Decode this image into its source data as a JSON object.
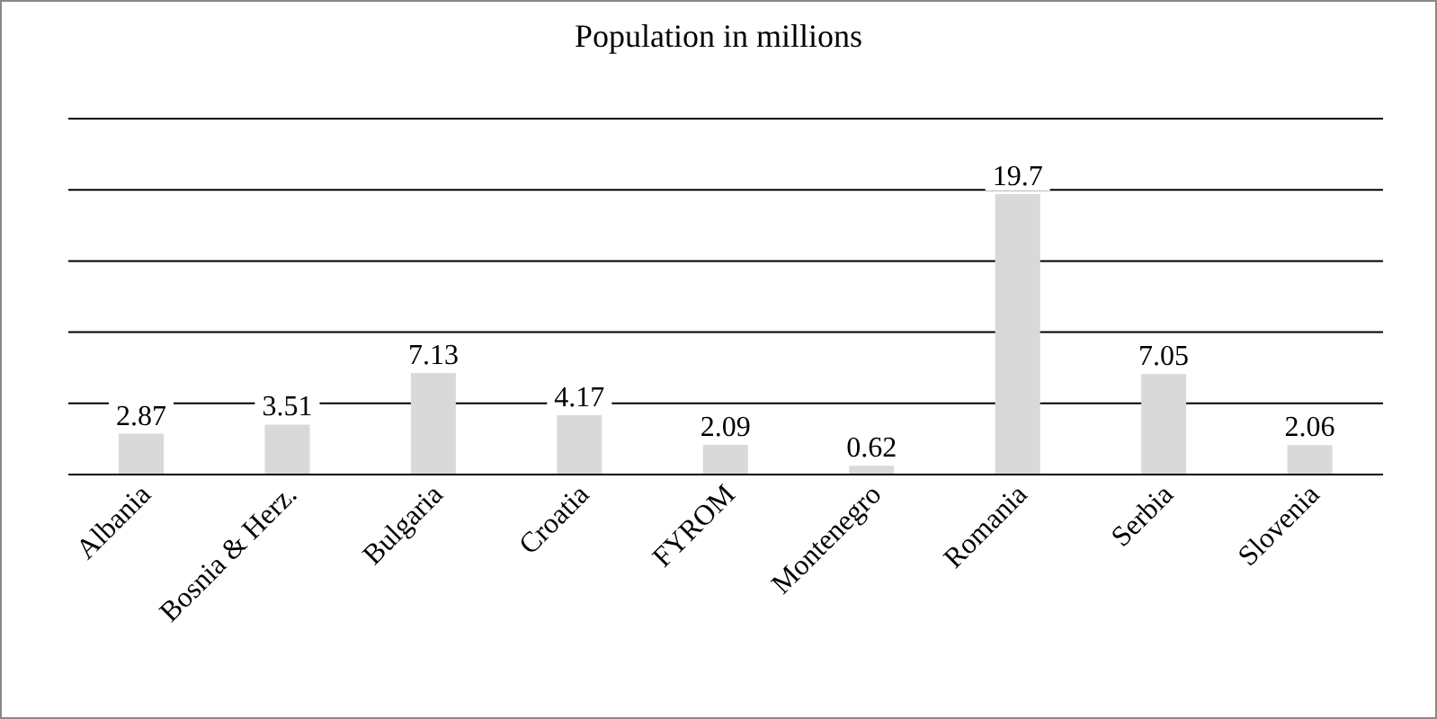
{
  "chart_data": {
    "type": "bar",
    "title": "Population in millions",
    "categories": [
      "Albania",
      "Bosnia & Herz.",
      "Bulgaria",
      "Croatia",
      "FYROM",
      "Montenegro",
      "Romania",
      "Serbia",
      "Slovenia"
    ],
    "values": [
      2.87,
      3.51,
      7.13,
      4.17,
      2.09,
      0.62,
      19.7,
      7.05,
      2.06
    ],
    "color": "#d9d9d9",
    "ylim": [
      0,
      25
    ],
    "grid": "y",
    "tick_labels": "x",
    "data_labels": true
  }
}
